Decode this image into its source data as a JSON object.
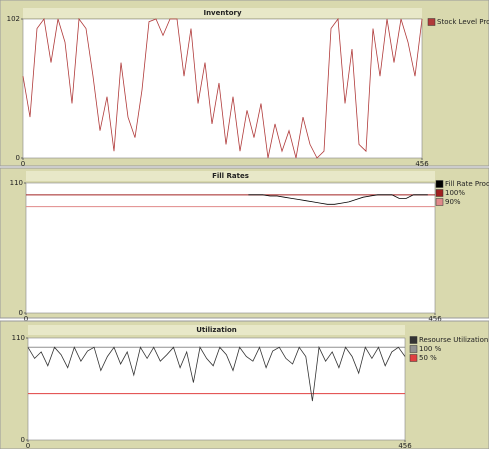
{
  "chart_data": [
    {
      "type": "line",
      "title": "Inventory",
      "x": [
        0,
        8,
        16,
        24,
        32,
        40,
        48,
        56,
        64,
        72,
        80,
        88,
        96,
        104,
        112,
        120,
        128,
        136,
        144,
        152,
        160,
        168,
        176,
        184,
        192,
        200,
        208,
        216,
        224,
        232,
        240,
        248,
        256,
        264,
        272,
        280,
        288,
        296,
        304,
        312,
        320,
        328,
        336,
        344,
        352,
        360,
        368,
        376,
        384,
        392,
        400,
        408,
        416,
        424,
        432,
        440,
        448,
        456
      ],
      "xlim": [
        0,
        456
      ],
      "xticks": [
        0,
        456
      ],
      "ylim": [
        0,
        102
      ],
      "yticks": [
        0,
        102
      ],
      "series": [
        {
          "name": "Stock Level Produc",
          "color": "#b03a3a",
          "values": [
            60,
            30,
            95,
            102,
            70,
            102,
            85,
            40,
            102,
            95,
            60,
            20,
            45,
            5,
            70,
            30,
            15,
            50,
            100,
            102,
            90,
            102,
            102,
            60,
            95,
            40,
            70,
            25,
            55,
            10,
            45,
            5,
            35,
            15,
            40,
            0,
            25,
            5,
            20,
            0,
            30,
            10,
            0,
            5,
            95,
            102,
            40,
            80,
            10,
            5,
            95,
            60,
            102,
            70,
            102,
            85,
            60,
            102
          ]
        }
      ]
    },
    {
      "type": "line",
      "title": "Fill Rates",
      "x": [
        0,
        8,
        16,
        24,
        32,
        40,
        48,
        56,
        64,
        72,
        80,
        88,
        96,
        104,
        112,
        120,
        128,
        136,
        144,
        152,
        160,
        168,
        176,
        184,
        192,
        200,
        208,
        216,
        224,
        232,
        240,
        248,
        256,
        264,
        272,
        280,
        288,
        296,
        304,
        312,
        320,
        328,
        336,
        344,
        352,
        360,
        368,
        376,
        384,
        392,
        400,
        408,
        416,
        424,
        432,
        440,
        448,
        456
      ],
      "xlim": [
        0,
        456
      ],
      "xticks": [
        0,
        456
      ],
      "ylim": [
        0,
        110
      ],
      "yticks": [
        0,
        110
      ],
      "series": [
        {
          "name": "Fill Rate Produc",
          "color": "#000000",
          "values": [
            null,
            null,
            null,
            null,
            null,
            null,
            null,
            null,
            null,
            null,
            null,
            null,
            null,
            null,
            null,
            null,
            null,
            null,
            null,
            null,
            null,
            null,
            null,
            null,
            null,
            null,
            null,
            null,
            null,
            null,
            null,
            100,
            100,
            100,
            99,
            99,
            98,
            97,
            96,
            95,
            94,
            93,
            92,
            92,
            93,
            94,
            96,
            98,
            99,
            100,
            100,
            100,
            97,
            97,
            100,
            100,
            100,
            null
          ]
        }
      ],
      "reference_lines": [
        {
          "name": "100%",
          "color": "#a02020",
          "value": 100
        },
        {
          "name": "90%",
          "color": "#e08a8a",
          "value": 90
        }
      ]
    },
    {
      "type": "line",
      "title": "Utilization",
      "x": [
        0,
        8,
        16,
        24,
        32,
        40,
        48,
        56,
        64,
        72,
        80,
        88,
        96,
        104,
        112,
        120,
        128,
        136,
        144,
        152,
        160,
        168,
        176,
        184,
        192,
        200,
        208,
        216,
        224,
        232,
        240,
        248,
        256,
        264,
        272,
        280,
        288,
        296,
        304,
        312,
        320,
        328,
        336,
        344,
        352,
        360,
        368,
        376,
        384,
        392,
        400,
        408,
        416,
        424,
        432,
        440,
        448,
        456
      ],
      "xlim": [
        0,
        456
      ],
      "xticks": [
        0,
        456
      ],
      "ylim": [
        0,
        110
      ],
      "yticks": [
        0,
        110
      ],
      "series": [
        {
          "name": "Resourse Utilization Plan",
          "color": "#333333",
          "values": [
            100,
            88,
            95,
            80,
            100,
            92,
            78,
            100,
            85,
            96,
            100,
            75,
            90,
            100,
            82,
            95,
            70,
            100,
            88,
            100,
            85,
            92,
            100,
            78,
            95,
            62,
            100,
            88,
            80,
            100,
            92,
            75,
            100,
            90,
            85,
            100,
            78,
            96,
            100,
            88,
            82,
            100,
            90,
            42,
            100,
            85,
            95,
            78,
            100,
            90,
            72,
            100,
            88,
            100,
            80,
            95,
            100,
            90
          ]
        }
      ],
      "reference_lines": [
        {
          "name": "100 %",
          "color": "#909090",
          "value": 100
        },
        {
          "name": "50 %",
          "color": "#e04040",
          "value": 50
        }
      ]
    }
  ]
}
